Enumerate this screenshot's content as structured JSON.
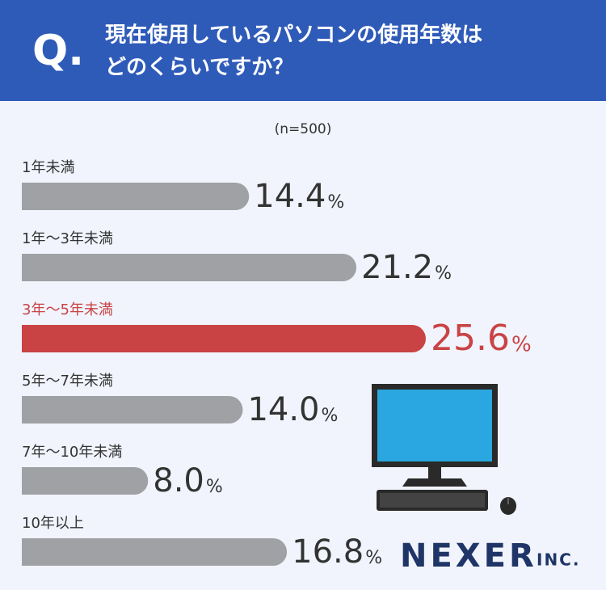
{
  "chart_data": {
    "type": "bar",
    "header": {
      "mark": "Q.",
      "title_lines": [
        "現在使用しているパソコンの使用年数は",
        "どのくらいですか？"
      ]
    },
    "note": "(n=500)",
    "categories": [
      "1年未満",
      "1年～3年未満",
      "3年～5年未満",
      "5年～7年未満",
      "7年～10年未満",
      "10年以上"
    ],
    "values": [
      14.4,
      21.2,
      25.6,
      14.0,
      8.0,
      16.8
    ],
    "value_labels": [
      "14.4",
      "21.2",
      "25.6",
      "14.0",
      "8.0",
      "16.8"
    ],
    "unit": "%",
    "colors": [
      "#a0a1a5",
      "#a0a1a5",
      "#c94345",
      "#a0a1a5",
      "#a0a1a5",
      "#a0a1a5"
    ],
    "highlight": 2,
    "logo": {
      "name": "NEXER",
      "suffix": "INC."
    }
  }
}
